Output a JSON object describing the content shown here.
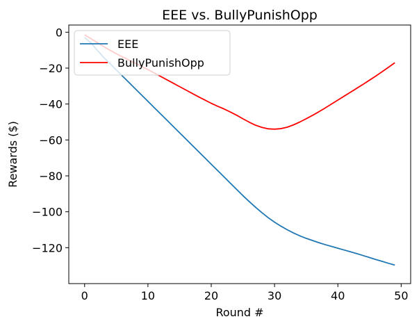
{
  "chart_data": {
    "type": "line",
    "title": "EEE vs. BullyPunishOpp",
    "xlabel": "Round #",
    "ylabel": "Rewards ($)",
    "xlim": [
      -2.5,
      51.5
    ],
    "ylim": [
      -140,
      4
    ],
    "xticks": [
      0,
      10,
      20,
      30,
      40,
      50
    ],
    "yticks": [
      0,
      -20,
      -40,
      -60,
      -80,
      -100,
      -120
    ],
    "grid": false,
    "legend_position": "top-left",
    "series": [
      {
        "name": "EEE",
        "color": "#1f77b4",
        "x": [
          0,
          1,
          2,
          3,
          4,
          5,
          6,
          7,
          8,
          9,
          10,
          11,
          12,
          13,
          14,
          15,
          16,
          17,
          18,
          19,
          20,
          21,
          22,
          23,
          24,
          25,
          26,
          27,
          28,
          29,
          30,
          31,
          32,
          33,
          34,
          35,
          36,
          37,
          38,
          39,
          40,
          41,
          42,
          43,
          44,
          45,
          46,
          47,
          48,
          49
        ],
        "y": [
          -3,
          -6,
          -10,
          -14,
          -17.5,
          -21,
          -24.5,
          -28,
          -31.5,
          -35,
          -38.5,
          -42,
          -45.5,
          -49,
          -52.5,
          -56,
          -59.5,
          -63,
          -66.5,
          -70,
          -73.5,
          -77,
          -80.5,
          -84,
          -87.5,
          -91,
          -94.3,
          -97.5,
          -100.5,
          -103.3,
          -105.8,
          -108,
          -110,
          -111.8,
          -113.4,
          -114.8,
          -116,
          -117.2,
          -118.3,
          -119.3,
          -120.3,
          -121.3,
          -122.3,
          -123.3,
          -124.4,
          -125.5,
          -126.6,
          -127.6,
          -128.7,
          -129.7
        ]
      },
      {
        "name": "BullyPunishOpp",
        "color": "#ff0000",
        "x": [
          0,
          1,
          2,
          3,
          4,
          5,
          6,
          7,
          8,
          9,
          10,
          11,
          12,
          13,
          14,
          15,
          16,
          17,
          18,
          19,
          20,
          21,
          22,
          23,
          24,
          25,
          26,
          27,
          28,
          29,
          30,
          31,
          32,
          33,
          34,
          35,
          36,
          37,
          38,
          39,
          40,
          41,
          42,
          43,
          44,
          45,
          46,
          47,
          48,
          49
        ],
        "y": [
          -1.5,
          -3.6,
          -5.8,
          -8,
          -10,
          -12,
          -13.8,
          -15.5,
          -17.2,
          -19,
          -20.8,
          -22.7,
          -24.6,
          -26.5,
          -28.4,
          -30.3,
          -32.2,
          -34.1,
          -36,
          -37.8,
          -39.6,
          -41.2,
          -42.7,
          -44.4,
          -46.2,
          -48.2,
          -50.1,
          -51.8,
          -53,
          -53.8,
          -54,
          -53.7,
          -52.9,
          -51.6,
          -50,
          -48.2,
          -46.3,
          -44.3,
          -42.2,
          -40,
          -37.8,
          -35.6,
          -33.4,
          -31.2,
          -29,
          -26.7,
          -24.4,
          -22,
          -19.5,
          -17
        ]
      }
    ]
  }
}
